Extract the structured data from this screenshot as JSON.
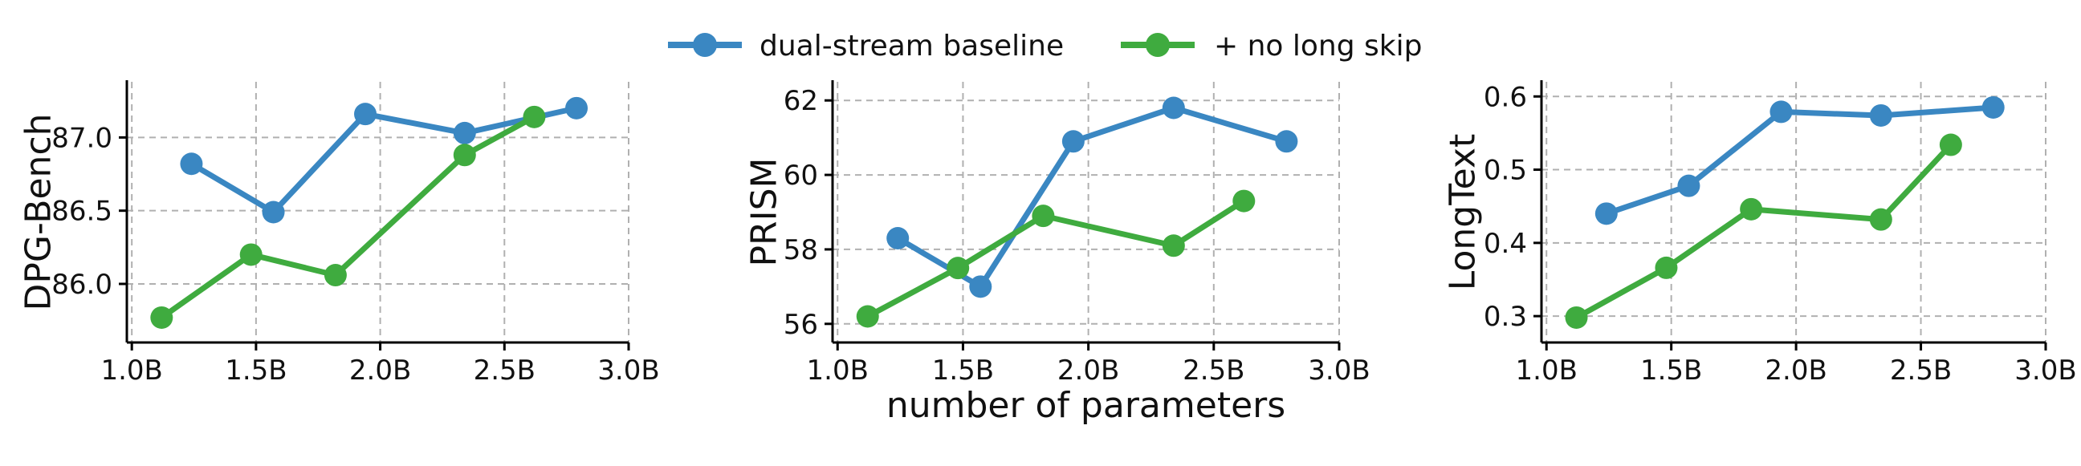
{
  "legend": {
    "entries": [
      {
        "label": "dual-stream baseline",
        "color": "#3a87c2"
      },
      {
        "label": "+ no long skip",
        "color": "#3fab3f"
      }
    ]
  },
  "shared_xlabel": "number of parameters",
  "chart_data": [
    {
      "type": "line",
      "ylabel": "DPG-Bench",
      "xlabel": "",
      "x_ticks": [
        1.0,
        1.5,
        2.0,
        2.5,
        3.0
      ],
      "x_tick_labels": [
        "1.0B",
        "1.5B",
        "2.0B",
        "2.5B",
        "3.0B"
      ],
      "y_ticks": [
        86.0,
        86.5,
        87.0
      ],
      "y_tick_labels": [
        "86.0",
        "86.5",
        "87.0"
      ],
      "xlim": [
        0.98,
        3.0
      ],
      "ylim": [
        85.6,
        87.38
      ],
      "grid": true,
      "series": [
        {
          "name": "dual-stream baseline",
          "color": "#3a87c2",
          "x": [
            1.24,
            1.57,
            1.94,
            2.34,
            2.79
          ],
          "y": [
            86.82,
            86.49,
            87.16,
            87.03,
            87.2
          ]
        },
        {
          "name": "+ no long skip",
          "color": "#3fab3f",
          "x": [
            1.12,
            1.48,
            1.82,
            2.34,
            2.62
          ],
          "y": [
            85.77,
            86.2,
            86.06,
            86.88,
            87.14
          ]
        }
      ]
    },
    {
      "type": "line",
      "ylabel": "PRISM",
      "xlabel": "number of parameters",
      "x_ticks": [
        1.0,
        1.5,
        2.0,
        2.5,
        3.0
      ],
      "x_tick_labels": [
        "1.0B",
        "1.5B",
        "2.0B",
        "2.5B",
        "3.0B"
      ],
      "y_ticks": [
        56,
        58,
        60,
        62
      ],
      "y_tick_labels": [
        "56",
        "58",
        "60",
        "62"
      ],
      "xlim": [
        0.98,
        3.0
      ],
      "ylim": [
        55.5,
        62.5
      ],
      "grid": true,
      "series": [
        {
          "name": "dual-stream baseline",
          "color": "#3a87c2",
          "x": [
            1.24,
            1.57,
            1.94,
            2.34,
            2.79
          ],
          "y": [
            58.3,
            57.0,
            60.9,
            61.8,
            60.9
          ]
        },
        {
          "name": "+ no long skip",
          "color": "#3fab3f",
          "x": [
            1.12,
            1.48,
            1.82,
            2.34,
            2.62
          ],
          "y": [
            56.2,
            57.5,
            58.9,
            58.1,
            59.3
          ]
        }
      ]
    },
    {
      "type": "line",
      "ylabel": "LongText",
      "xlabel": "",
      "x_ticks": [
        1.0,
        1.5,
        2.0,
        2.5,
        3.0
      ],
      "x_tick_labels": [
        "1.0B",
        "1.5B",
        "2.0B",
        "2.5B",
        "3.0B"
      ],
      "y_ticks": [
        0.3,
        0.4,
        0.5,
        0.6
      ],
      "y_tick_labels": [
        "0.3",
        "0.4",
        "0.5",
        "0.6"
      ],
      "xlim": [
        0.98,
        3.0
      ],
      "ylim": [
        0.264,
        0.62
      ],
      "grid": true,
      "series": [
        {
          "name": "dual-stream baseline",
          "color": "#3a87c2",
          "x": [
            1.24,
            1.57,
            1.94,
            2.34,
            2.79
          ],
          "y": [
            0.44,
            0.478,
            0.579,
            0.574,
            0.585
          ]
        },
        {
          "name": "+ no long skip",
          "color": "#3fab3f",
          "x": [
            1.12,
            1.48,
            1.82,
            2.34,
            2.62
          ],
          "y": [
            0.298,
            0.366,
            0.446,
            0.432,
            0.534
          ]
        }
      ]
    }
  ]
}
